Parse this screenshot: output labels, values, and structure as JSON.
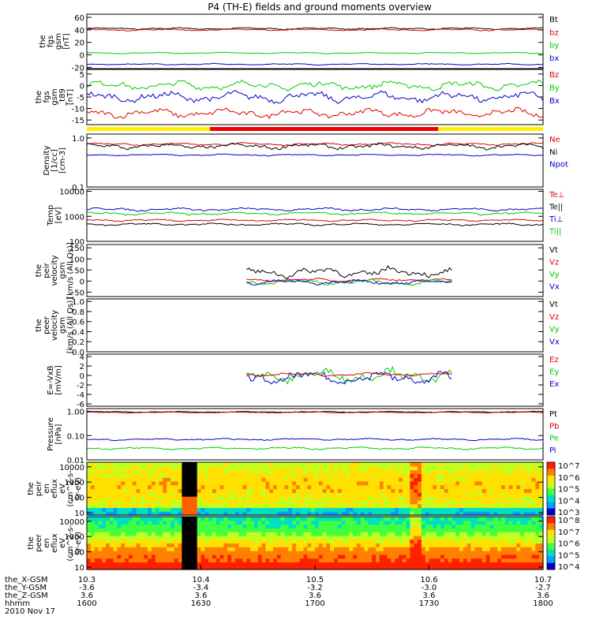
{
  "title": "P4 (TH-E) fields and ground moments overview",
  "panels": [
    {
      "id": "p1",
      "ylabel": [
        "the",
        "fgs",
        "gsm",
        "[nT]"
      ],
      "ticks": [
        "60",
        "40",
        "20",
        "0",
        "-20"
      ],
      "tickval": [
        60,
        40,
        20,
        0,
        -20
      ],
      "ylim": [
        -22,
        65
      ],
      "log": false,
      "legend": [
        {
          "t": "Bt",
          "c": "#000000"
        },
        {
          "t": "bz",
          "c": "#e00000"
        },
        {
          "t": "by",
          "c": "#00cc00"
        },
        {
          "t": "bx",
          "c": "#0000cc"
        }
      ],
      "series": [
        {
          "c": "#000000",
          "base": 42,
          "amp": 1.6
        },
        {
          "c": "#e00000",
          "base": 40,
          "amp": 1.6
        },
        {
          "c": "#00cc00",
          "base": 3,
          "amp": 1.2
        },
        {
          "c": "#0000cc",
          "base": -15,
          "amp": 1.2
        }
      ]
    },
    {
      "id": "p2",
      "ylabel": [
        "the",
        "fgs",
        "gsm",
        "_t89",
        "[nT]"
      ],
      "ticks": [
        "5",
        "0",
        "-5",
        "-10",
        "-15"
      ],
      "tickval": [
        5,
        0,
        -5,
        -10,
        -15
      ],
      "ylim": [
        -17,
        7
      ],
      "log": false,
      "legend": [
        {
          "t": "Bz",
          "c": "#e00000"
        },
        {
          "t": "By",
          "c": "#00cc00"
        },
        {
          "t": "Bx",
          "c": "#0000cc"
        }
      ],
      "series": [
        {
          "c": "#00cc00",
          "base": 0,
          "amp": 2.2
        },
        {
          "c": "#0000cc",
          "base": -5,
          "amp": 2.6
        },
        {
          "c": "#e00000",
          "base": -12,
          "amp": 2.2
        }
      ]
    },
    {
      "id": "p3",
      "ylabel": [
        "Density",
        "[1/cc]",
        "[cm-3]"
      ],
      "ticks": [
        "1.0",
        "0.1"
      ],
      "tickval": [
        1.0,
        0.1
      ],
      "ylim": [
        0.1,
        1.2
      ],
      "log": true,
      "legend": [
        {
          "t": "Ne",
          "c": "#e00000"
        },
        {
          "t": "Ni",
          "c": "#000000"
        },
        {
          "t": "Npot",
          "c": "#0000cc"
        }
      ],
      "series": [
        {
          "c": "#e00000",
          "base": 0.75,
          "amp": 0.05
        },
        {
          "c": "#000000",
          "base": 0.68,
          "amp": 0.1
        },
        {
          "c": "#0000cc",
          "base": 0.45,
          "amp": 0.02
        }
      ]
    },
    {
      "id": "p4",
      "ylabel": [
        "Temp",
        "[eV]"
      ],
      "ticks": [
        "10000",
        "1000",
        "100"
      ],
      "tickval": [
        10000,
        1000,
        100
      ],
      "ylim": [
        100,
        12000
      ],
      "log": true,
      "legend": [
        {
          "t": "Te⊥",
          "c": "#e00000"
        },
        {
          "t": "Te||",
          "c": "#000000"
        },
        {
          "t": "Ti⊥",
          "c": "#0000cc"
        },
        {
          "t": "Ti||",
          "c": "#00cc00"
        }
      ],
      "series": [
        {
          "c": "#0000cc",
          "base": 1900,
          "amp": 300
        },
        {
          "c": "#00cc00",
          "base": 1300,
          "amp": 200
        },
        {
          "c": "#e00000",
          "base": 700,
          "amp": 80
        },
        {
          "c": "#000000",
          "base": 480,
          "amp": 60
        }
      ]
    },
    {
      "id": "p5",
      "ylabel": [
        "the",
        "peir",
        "velocity",
        "gsm",
        "[km/s (All Qs)]"
      ],
      "ticks": [
        "150",
        "100",
        "50",
        "0",
        "-50"
      ],
      "tickval": [
        150,
        100,
        50,
        0,
        -50
      ],
      "ylim": [
        -70,
        165
      ],
      "log": false,
      "legend": [
        {
          "t": "Vt",
          "c": "#000000"
        },
        {
          "t": "Vz",
          "c": "#e00000"
        },
        {
          "t": "Vy",
          "c": "#00cc00"
        },
        {
          "t": "Vx",
          "c": "#0000cc"
        }
      ],
      "series": [
        {
          "c": "#000000",
          "base": 40,
          "amp": 25,
          "t0": 0.35,
          "t1": 0.8
        },
        {
          "c": "#e00000",
          "base": 5,
          "amp": 8,
          "t0": 0.35,
          "t1": 0.8
        },
        {
          "c": "#00cc00",
          "base": -5,
          "amp": 15,
          "t0": 0.35,
          "t1": 0.8
        },
        {
          "c": "#0000cc",
          "base": -5,
          "amp": 12,
          "t0": 0.35,
          "t1": 0.8
        }
      ]
    },
    {
      "id": "p6",
      "ylabel": [
        "the",
        "peer",
        "velocity",
        "gsm",
        "[km/s (All Qs)]"
      ],
      "ticks": [
        "1.0",
        "0.8",
        "0.6",
        "0.4",
        "0.2",
        "0.0"
      ],
      "tickval": [
        1.0,
        0.8,
        0.6,
        0.4,
        0.2,
        0.0
      ],
      "ylim": [
        0,
        1.05
      ],
      "log": false,
      "legend": [
        {
          "t": "Vt",
          "c": "#000000"
        },
        {
          "t": "Vz",
          "c": "#e00000"
        },
        {
          "t": "Vy",
          "c": "#00cc00"
        },
        {
          "t": "Vx",
          "c": "#0000cc"
        }
      ],
      "series": []
    },
    {
      "id": "p7",
      "ylabel": [
        "E=-VxB",
        "[mV/m]"
      ],
      "ticks": [
        "4",
        "2",
        "0",
        "-2",
        "-4",
        "-6"
      ],
      "tickval": [
        4,
        2,
        0,
        -2,
        -4,
        -6
      ],
      "ylim": [
        -6.5,
        4.5
      ],
      "log": false,
      "legend": [
        {
          "t": "Ez",
          "c": "#e00000"
        },
        {
          "t": "Ey",
          "c": "#00cc00"
        },
        {
          "t": "Ex",
          "c": "#0000cc"
        }
      ],
      "series": [
        {
          "c": "#00cc00",
          "base": 0,
          "amp": 1.6,
          "t0": 0.35,
          "t1": 0.8
        },
        {
          "c": "#0000cc",
          "base": -0.5,
          "amp": 1.6,
          "t0": 0.35,
          "t1": 0.8
        },
        {
          "c": "#e00000",
          "base": 0.2,
          "amp": 0.4,
          "t0": 0.35,
          "t1": 0.8
        }
      ]
    },
    {
      "id": "p8",
      "ylabel": [
        "Pressure",
        "[nPa]"
      ],
      "ticks": [
        "1.00",
        "0.10",
        "0.01"
      ],
      "tickval": [
        1.0,
        0.1,
        0.01
      ],
      "ylim": [
        0.01,
        1.3
      ],
      "log": true,
      "legend": [
        {
          "t": "Pt",
          "c": "#000000"
        },
        {
          "t": "Pb",
          "c": "#e00000"
        },
        {
          "t": "Pe",
          "c": "#00cc00"
        },
        {
          "t": "Pi",
          "c": "#0000cc"
        }
      ],
      "series": [
        {
          "c": "#000000",
          "base": 0.95,
          "amp": 0.05
        },
        {
          "c": "#e00000",
          "base": 0.9,
          "amp": 0.05
        },
        {
          "c": "#0000cc",
          "base": 0.07,
          "amp": 0.008
        },
        {
          "c": "#00cc00",
          "base": 0.03,
          "amp": 0.004
        }
      ]
    },
    {
      "id": "p9",
      "type": "spectrogram",
      "ylabel": [
        "the",
        "peir",
        "en",
        "eflux",
        "eV",
        "(cm^2-s-",
        "sr-eV)"
      ],
      "ticks": [
        "10000",
        "1000",
        "100",
        "10"
      ],
      "tickval": [
        10000,
        1000,
        100,
        10
      ],
      "ylim": [
        7,
        20000
      ],
      "log": true,
      "cbar": [
        "10^7",
        "10^6",
        "10^5",
        "10^4",
        "10^3"
      ]
    },
    {
      "id": "p10",
      "type": "spectrogram",
      "ylabel": [
        "the",
        "peer",
        "en",
        "eflux",
        "eV",
        "(cm^2-s-",
        "sr-eV)"
      ],
      "ticks": [
        "10000",
        "1000",
        "100",
        "10"
      ],
      "tickval": [
        10000,
        1000,
        100,
        10
      ],
      "ylim": [
        7,
        20000
      ],
      "log": true,
      "cbar": [
        "10^8",
        "10^7",
        "10^6",
        "10^5",
        "10^4"
      ]
    }
  ],
  "x_ticks": [
    {
      "r1": "10.3",
      "r2": "-3.6",
      "r3": "3.6",
      "r4": "1600"
    },
    {
      "r1": "10.4",
      "r2": "-3.4",
      "r3": "3.6",
      "r4": "1630"
    },
    {
      "r1": "10.5",
      "r2": "-3.2",
      "r3": "3.6",
      "r4": "1700"
    },
    {
      "r1": "10.6",
      "r2": "-3.0",
      "r3": "3.6",
      "r4": "1730"
    },
    {
      "r1": "10.7",
      "r2": "-2.7",
      "r3": "3.6",
      "r4": "1800"
    }
  ],
  "row_labels": [
    "the_X-GSM",
    "the_Y-GSM",
    "the_Z-GSM",
    "hhmm",
    "2010 Nov 17"
  ],
  "chart_data": {
    "type": "line",
    "title": "P4 (TH-E) fields and ground moments overview",
    "xlabel": "hhmm",
    "x": [
      "1600",
      "1630",
      "1700",
      "1730",
      "1800"
    ],
    "date": "2010 Nov 17",
    "panels": [
      "the fgs gsm [nT]",
      "the fgs gsm_t89 [nT]",
      "Density [1/cc]",
      "Temp [eV]",
      "the peir velocity gsm",
      "the peer velocity gsm",
      "E=-VxB [mV/m]",
      "Pressure [nPa]",
      "the peir en eflux",
      "the peer en eflux"
    ],
    "grid": false,
    "legend_position": "right"
  }
}
